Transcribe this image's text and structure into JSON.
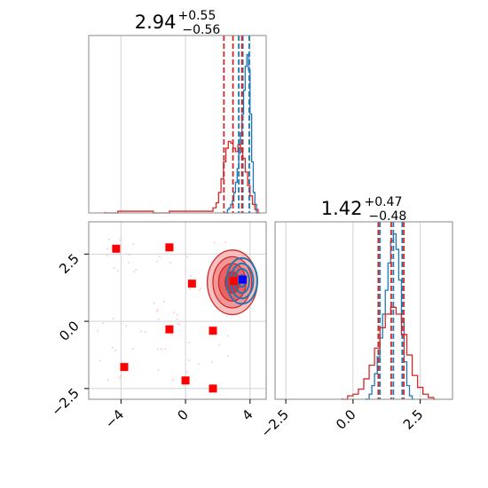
{
  "chart_data": [
    {
      "type": "histogram",
      "panel": "marginal-x",
      "title": {
        "value": "2.94",
        "plus": "+0.55",
        "minus": "−0.56"
      },
      "xlim": [
        -6,
        5
      ],
      "grid": true,
      "xticks": [
        "−4",
        "0",
        "4"
      ],
      "xtick_values": [
        -4,
        0,
        4
      ],
      "series": [
        {
          "color": "#1f77b4",
          "bins": [
            [
              2.5,
              0.0
            ],
            [
              2.6,
              0.02
            ],
            [
              2.7,
              0.03
            ],
            [
              2.8,
              0.05
            ],
            [
              2.9,
              0.07
            ],
            [
              3.0,
              0.12
            ],
            [
              3.1,
              0.18
            ],
            [
              3.2,
              0.26
            ],
            [
              3.3,
              0.35
            ],
            [
              3.4,
              0.47
            ],
            [
              3.5,
              0.58
            ],
            [
              3.6,
              0.72
            ],
            [
              3.7,
              0.86
            ],
            [
              3.8,
              0.93
            ],
            [
              3.9,
              0.84
            ],
            [
              4.0,
              0.58
            ],
            [
              4.1,
              0.3
            ],
            [
              4.2,
              0.12
            ],
            [
              4.3,
              0.05
            ],
            [
              4.4,
              0.0
            ]
          ],
          "quantiles": [
            3.3,
            3.55,
            3.95
          ]
        },
        {
          "color": "#d62728",
          "bins": [
            [
              -5.0,
              0.0
            ],
            [
              -4.5,
              0.0
            ],
            [
              -4.2,
              0.01
            ],
            [
              -3.5,
              0.01
            ],
            [
              -3.0,
              0.01
            ],
            [
              -2.0,
              0.0
            ],
            [
              -1.0,
              0.01
            ],
            [
              0.0,
              0.01
            ],
            [
              1.0,
              0.01
            ],
            [
              1.7,
              0.03
            ],
            [
              1.9,
              0.06
            ],
            [
              2.05,
              0.12
            ],
            [
              2.2,
              0.2
            ],
            [
              2.35,
              0.3
            ],
            [
              2.5,
              0.38
            ],
            [
              2.65,
              0.42
            ],
            [
              2.8,
              0.41
            ],
            [
              2.95,
              0.38
            ],
            [
              3.1,
              0.36
            ],
            [
              3.25,
              0.4
            ],
            [
              3.4,
              0.38
            ],
            [
              3.55,
              0.32
            ],
            [
              3.7,
              0.24
            ],
            [
              3.85,
              0.16
            ],
            [
              4.0,
              0.1
            ],
            [
              4.15,
              0.05
            ],
            [
              4.3,
              0.02
            ],
            [
              4.5,
              0.0
            ]
          ],
          "quantiles": [
            2.38,
            2.94,
            3.49
          ]
        }
      ]
    },
    {
      "type": "scatter",
      "panel": "joint",
      "xlim": [
        -6,
        5
      ],
      "ylim": [
        -2.9,
        3.7
      ],
      "grid": true,
      "xticks": [
        "−4",
        "0",
        "4"
      ],
      "xtick_values": [
        -4,
        0,
        4
      ],
      "yticks": [
        "−2.5",
        "0.0",
        "2.5"
      ],
      "ytick_values": [
        -2.5,
        0.0,
        2.5
      ],
      "markers": {
        "red": [
          [
            -4.3,
            2.7
          ],
          [
            -1.0,
            2.75
          ],
          [
            0.4,
            1.4
          ],
          [
            -1.0,
            -0.3
          ],
          [
            1.7,
            -0.35
          ],
          [
            -3.8,
            -1.7
          ],
          [
            0.0,
            -2.2
          ],
          [
            1.7,
            -2.5
          ],
          [
            3.0,
            1.5
          ]
        ],
        "blue": [
          [
            3.55,
            1.55
          ]
        ]
      },
      "contours": {
        "red": {
          "center": [
            2.9,
            1.45
          ],
          "levels": [
            [
              1.55,
              1.2
            ],
            [
              1.2,
              0.95
            ],
            [
              0.85,
              0.7
            ],
            [
              0.45,
              0.4
            ]
          ]
        },
        "blue": {
          "center": [
            3.5,
            1.5
          ],
          "levels": [
            [
              0.95,
              0.85
            ],
            [
              0.7,
              0.65
            ],
            [
              0.45,
              0.45
            ],
            [
              0.22,
              0.22
            ]
          ]
        }
      },
      "colors": {
        "red": "#d62728",
        "blue": "#1f77b4",
        "marker_red": "#ff0000",
        "marker_blue": "#0000ff"
      }
    },
    {
      "type": "histogram",
      "panel": "marginal-y",
      "title": {
        "value": "1.42",
        "plus": "+0.47",
        "minus": "−0.48"
      },
      "xlim": [
        -2.9,
        3.7
      ],
      "grid": true,
      "xticks": [
        "−2.5",
        "0.0",
        "2.5"
      ],
      "xtick_values": [
        -2.5,
        0.0,
        2.5
      ],
      "series": [
        {
          "color": "#1f77b4",
          "bins": [
            [
              0.5,
              0.0
            ],
            [
              0.6,
              0.03
            ],
            [
              0.7,
              0.08
            ],
            [
              0.8,
              0.15
            ],
            [
              0.9,
              0.25
            ],
            [
              1.0,
              0.36
            ],
            [
              1.1,
              0.5
            ],
            [
              1.2,
              0.64
            ],
            [
              1.3,
              0.8
            ],
            [
              1.4,
              0.93
            ],
            [
              1.5,
              0.97
            ],
            [
              1.6,
              0.88
            ],
            [
              1.7,
              0.7
            ],
            [
              1.8,
              0.45
            ],
            [
              1.9,
              0.22
            ],
            [
              2.0,
              0.08
            ],
            [
              2.1,
              0.02
            ],
            [
              2.2,
              0.0
            ]
          ],
          "quantiles": [
            1.0,
            1.5,
            1.83
          ]
        },
        {
          "color": "#d62728",
          "bins": [
            [
              -0.4,
              0.0
            ],
            [
              -0.2,
              0.02
            ],
            [
              0.0,
              0.03
            ],
            [
              0.2,
              0.06
            ],
            [
              0.4,
              0.12
            ],
            [
              0.6,
              0.2
            ],
            [
              0.8,
              0.3
            ],
            [
              1.0,
              0.42
            ],
            [
              1.2,
              0.5
            ],
            [
              1.4,
              0.54
            ],
            [
              1.6,
              0.5
            ],
            [
              1.8,
              0.38
            ],
            [
              2.0,
              0.26
            ],
            [
              2.2,
              0.14
            ],
            [
              2.4,
              0.07
            ],
            [
              2.6,
              0.03
            ],
            [
              2.8,
              0.01
            ],
            [
              3.0,
              0.0
            ]
          ],
          "quantiles": [
            0.94,
            1.42,
            1.89
          ]
        }
      ]
    }
  ]
}
